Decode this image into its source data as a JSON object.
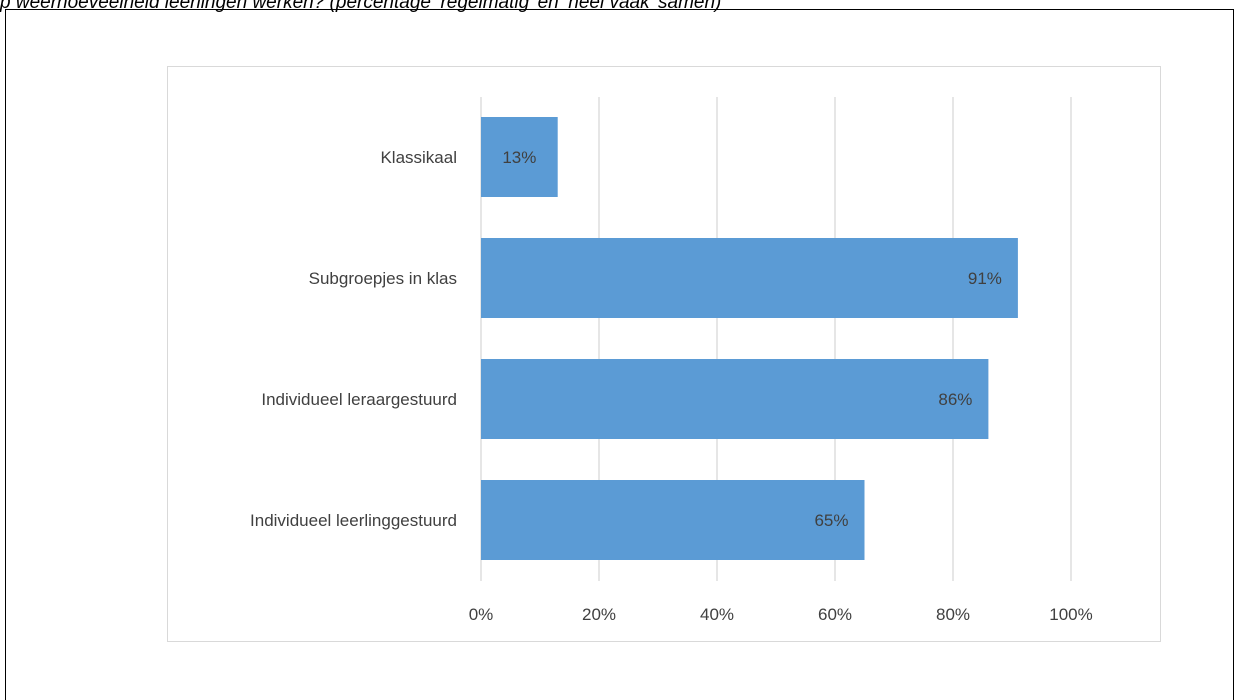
{
  "header": {
    "partial_caption": "p weerhoeveelheid leerlingen werken? (percentage ‘regelmatig’ en ‘heel vaak’ samen)"
  },
  "colors": {
    "bar": "#5b9bd5",
    "grid": "#d9d9d9",
    "text": "#404040"
  },
  "chart_data": {
    "type": "bar",
    "orientation": "horizontal",
    "categories": [
      "Klassikaal",
      "Subgroepjes in klas",
      "Individueel leraargestuurd",
      "Individueel leerlinggestuurd"
    ],
    "values": [
      13,
      91,
      86,
      65
    ],
    "data_labels": [
      "13%",
      "91%",
      "86%",
      "65%"
    ],
    "xlim": [
      0,
      100
    ],
    "x_ticks": [
      0,
      20,
      40,
      60,
      80,
      100
    ],
    "x_tick_labels": [
      "0%",
      "20%",
      "40%",
      "60%",
      "80%",
      "100%"
    ],
    "grid": true,
    "legend": "none",
    "title": "",
    "xlabel": "",
    "ylabel": ""
  }
}
